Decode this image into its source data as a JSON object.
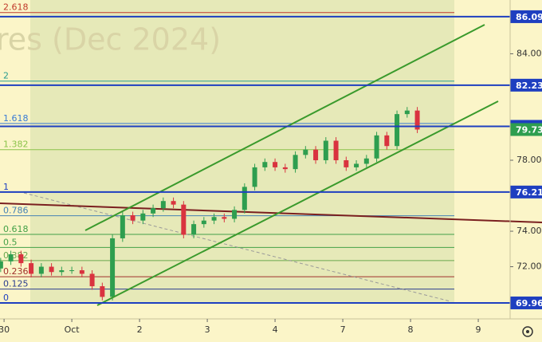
{
  "chart_data": {
    "type": "candlestick",
    "title": "res (Dec 2024)",
    "x": [
      -0.05,
      0.1,
      0.25,
      0.4,
      0.55,
      0.7,
      0.85,
      1,
      1.15,
      1.3,
      1.45,
      1.6,
      1.75,
      1.9,
      2.05,
      2.2,
      2.35,
      2.5,
      2.65,
      2.8,
      2.95,
      3.1,
      3.25,
      3.4,
      3.55,
      3.7,
      3.85,
      4,
      4.15,
      4.3,
      4.45,
      4.6,
      4.75,
      4.9,
      5.05,
      5.2,
      5.35,
      5.5,
      5.65,
      5.8,
      5.95,
      6.1
    ],
    "open": [
      71.9,
      72.3,
      72.7,
      72.2,
      71.6,
      72.0,
      71.7,
      71.8,
      71.8,
      71.6,
      70.9,
      70.3,
      73.6,
      74.9,
      74.6,
      75.0,
      75.3,
      75.7,
      75.5,
      73.8,
      74.4,
      74.6,
      74.8,
      74.7,
      75.2,
      76.5,
      77.6,
      77.9,
      77.6,
      77.5,
      78.3,
      78.6,
      78.0,
      79.1,
      78.0,
      77.6,
      77.8,
      78.1,
      79.4,
      78.8,
      80.6,
      80.8
    ],
    "high": [
      72.5,
      72.9,
      72.9,
      72.4,
      72.2,
      72.2,
      72.0,
      72.0,
      72.0,
      71.8,
      71.1,
      73.8,
      75.1,
      75.1,
      75.2,
      75.5,
      75.9,
      75.9,
      75.7,
      74.6,
      74.8,
      75.0,
      75.0,
      75.4,
      76.7,
      77.8,
      78.1,
      78.1,
      77.8,
      78.5,
      78.8,
      78.8,
      79.3,
      79.3,
      78.2,
      78.0,
      78.3,
      79.6,
      79.6,
      80.8,
      81.0,
      81.0
    ],
    "low": [
      71.7,
      72.1,
      72.0,
      71.4,
      71.4,
      71.5,
      71.5,
      71.6,
      71.4,
      70.7,
      70.1,
      70.1,
      73.4,
      74.4,
      74.4,
      74.8,
      75.1,
      75.3,
      73.6,
      73.6,
      74.2,
      74.4,
      74.5,
      74.5,
      75.0,
      76.3,
      77.4,
      77.4,
      77.3,
      77.3,
      78.1,
      77.8,
      77.8,
      77.8,
      77.4,
      77.4,
      77.6,
      77.9,
      78.6,
      78.6,
      80.4,
      79.53
    ],
    "close": [
      72.3,
      72.7,
      72.2,
      71.6,
      72.0,
      71.7,
      71.8,
      71.8,
      71.6,
      70.9,
      70.3,
      73.6,
      74.9,
      74.6,
      75.0,
      75.3,
      75.7,
      75.5,
      73.8,
      74.4,
      74.6,
      74.8,
      74.7,
      75.2,
      76.5,
      77.6,
      77.9,
      77.6,
      77.5,
      78.3,
      78.6,
      78.0,
      79.1,
      78.0,
      77.6,
      77.8,
      78.1,
      79.4,
      78.8,
      80.6,
      80.8,
      79.73
    ],
    "up_color": "#2e9e4f",
    "down_color": "#d9333f",
    "xlim": [
      -0.06,
      7.47
    ],
    "xticks": [
      {
        "value": 0,
        "label": "30"
      },
      {
        "value": 1,
        "label": "Oct"
      },
      {
        "value": 2,
        "label": "2"
      },
      {
        "value": 3,
        "label": "3"
      },
      {
        "value": 4,
        "label": "4"
      },
      {
        "value": 5,
        "label": "7"
      },
      {
        "value": 6,
        "label": "8"
      },
      {
        "value": 7,
        "label": "9"
      }
    ],
    "ylim": [
      69.06,
      87.03
    ],
    "yticks": [
      {
        "value": 72,
        "label": "72.00"
      },
      {
        "value": 74,
        "label": "74.00"
      },
      {
        "value": 78,
        "label": "78.00"
      },
      {
        "value": 84,
        "label": "84.00"
      }
    ],
    "price_lines": [
      86.09,
      82.23,
      79.91,
      76.21,
      69.96
    ],
    "last_price": 79.73,
    "fib_range": [
      69.96,
      76.21
    ],
    "fib_levels": [
      2.618,
      2,
      1.618,
      1.382,
      1,
      0.786,
      0.618,
      0.5,
      0.382,
      0.236,
      0.125,
      0
    ],
    "fib_colors": [
      "#c0392b",
      "#2a9d8f",
      "#3a7bd5",
      "#8bc34a",
      "#1e3fc0",
      "#4682b4",
      "#43a047",
      "#43a047",
      "#6aa84f",
      "#a0302b",
      "#2c3e8f",
      "#1e3fc0"
    ]
  }
}
